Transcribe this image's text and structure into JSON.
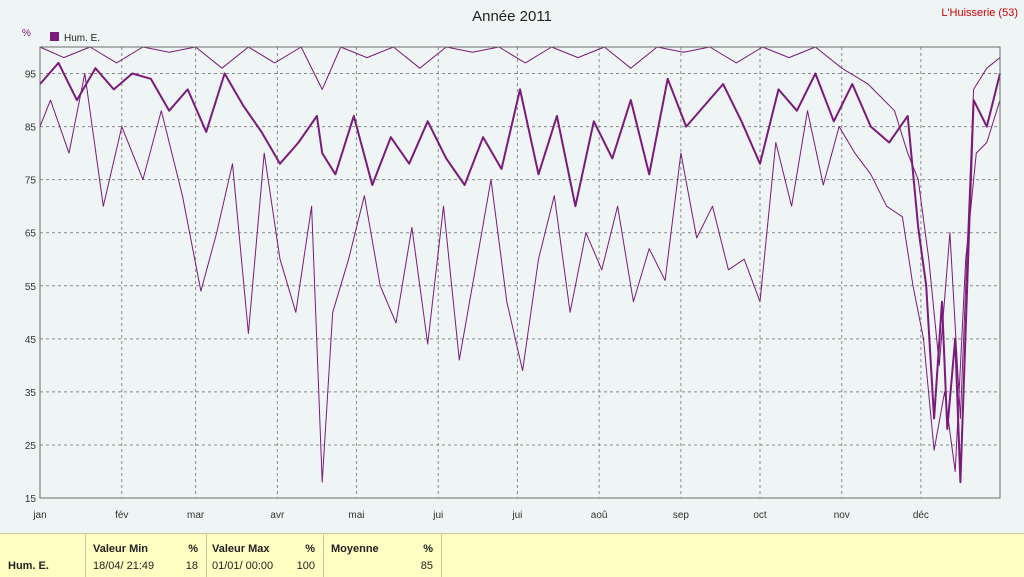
{
  "header": {
    "title": "Année 2011",
    "station": "L'Huisserie (53)"
  },
  "chart_data": {
    "type": "line",
    "title": "Année 2011",
    "ylabel": "%",
    "ylim": [
      15,
      100
    ],
    "yticks": [
      15,
      25,
      35,
      45,
      55,
      65,
      75,
      85,
      95
    ],
    "xlim": [
      1,
      365
    ],
    "grid": true,
    "legend_position": "top-left",
    "color": "#7a1a7a",
    "months": [
      {
        "label": "jan",
        "day": 1
      },
      {
        "label": "fév",
        "day": 32
      },
      {
        "label": "mar",
        "day": 60
      },
      {
        "label": "avr",
        "day": 91
      },
      {
        "label": "mai",
        "day": 121
      },
      {
        "label": "jui",
        "day": 152
      },
      {
        "label": "jui",
        "day": 182
      },
      {
        "label": "aoû",
        "day": 213
      },
      {
        "label": "sep",
        "day": 244
      },
      {
        "label": "oct",
        "day": 274
      },
      {
        "label": "nov",
        "day": 305
      },
      {
        "label": "déc",
        "day": 335
      }
    ],
    "series": [
      {
        "name": "Hum. E.",
        "role": "mean",
        "x": [
          1,
          8,
          15,
          22,
          29,
          36,
          43,
          50,
          57,
          64,
          71,
          78,
          85,
          92,
          99,
          106,
          108,
          113,
          120,
          127,
          134,
          141,
          148,
          155,
          162,
          169,
          176,
          183,
          190,
          197,
          204,
          211,
          218,
          225,
          232,
          239,
          246,
          253,
          260,
          267,
          274,
          281,
          288,
          295,
          302,
          309,
          316,
          323,
          330,
          334,
          337,
          340,
          343,
          345,
          348,
          350,
          355,
          360,
          365
        ],
        "values": [
          93,
          97,
          90,
          96,
          92,
          95,
          94,
          88,
          92,
          84,
          95,
          89,
          84,
          78,
          82,
          87,
          80,
          76,
          87,
          74,
          83,
          78,
          86,
          79,
          74,
          83,
          77,
          92,
          76,
          87,
          70,
          86,
          79,
          90,
          76,
          94,
          85,
          89,
          93,
          86,
          78,
          92,
          88,
          95,
          86,
          93,
          85,
          82,
          87,
          66,
          55,
          30,
          52,
          28,
          45,
          18,
          90,
          85,
          95
        ]
      },
      {
        "name": "",
        "role": "max",
        "x": [
          1,
          10,
          20,
          30,
          40,
          50,
          60,
          70,
          80,
          90,
          100,
          108,
          115,
          125,
          135,
          145,
          155,
          165,
          175,
          185,
          195,
          205,
          215,
          225,
          235,
          245,
          255,
          265,
          275,
          285,
          295,
          305,
          315,
          325,
          330,
          334,
          338,
          342,
          346,
          350,
          355,
          360,
          365
        ],
        "values": [
          100,
          98,
          100,
          97,
          100,
          99,
          100,
          96,
          100,
          97,
          100,
          92,
          100,
          98,
          100,
          96,
          100,
          99,
          100,
          97,
          100,
          98,
          100,
          96,
          100,
          99,
          100,
          97,
          100,
          98,
          100,
          96,
          93,
          88,
          80,
          75,
          60,
          40,
          65,
          30,
          92,
          96,
          98
        ]
      },
      {
        "name": "",
        "role": "min",
        "x": [
          1,
          5,
          12,
          18,
          25,
          32,
          40,
          47,
          55,
          62,
          68,
          74,
          80,
          86,
          92,
          98,
          104,
          108,
          112,
          118,
          124,
          130,
          136,
          142,
          148,
          154,
          160,
          166,
          172,
          178,
          184,
          190,
          196,
          202,
          208,
          214,
          220,
          226,
          232,
          238,
          244,
          250,
          256,
          262,
          268,
          274,
          280,
          286,
          292,
          298,
          304,
          310,
          316,
          322,
          328,
          332,
          336,
          340,
          344,
          348,
          352,
          356,
          360,
          365
        ],
        "values": [
          85,
          90,
          80,
          95,
          70,
          85,
          75,
          88,
          72,
          54,
          65,
          78,
          46,
          80,
          60,
          50,
          70,
          18,
          50,
          60,
          72,
          55,
          48,
          66,
          44,
          70,
          41,
          58,
          75,
          52,
          39,
          60,
          72,
          50,
          65,
          58,
          70,
          52,
          62,
          56,
          80,
          64,
          70,
          58,
          60,
          52,
          82,
          70,
          88,
          74,
          85,
          80,
          76,
          70,
          68,
          55,
          45,
          24,
          35,
          20,
          60,
          80,
          82,
          90
        ]
      }
    ]
  },
  "stats": {
    "series_label": "Hum. E.",
    "min": {
      "header": "Valeur Min",
      "unit": "%",
      "date": "18/04/ 21:49",
      "value": "18"
    },
    "max": {
      "header": "Valeur Max",
      "unit": "%",
      "date": "01/01/ 00:00",
      "value": "100"
    },
    "mean": {
      "header": "Moyenne",
      "unit": "%",
      "value": "85"
    }
  }
}
